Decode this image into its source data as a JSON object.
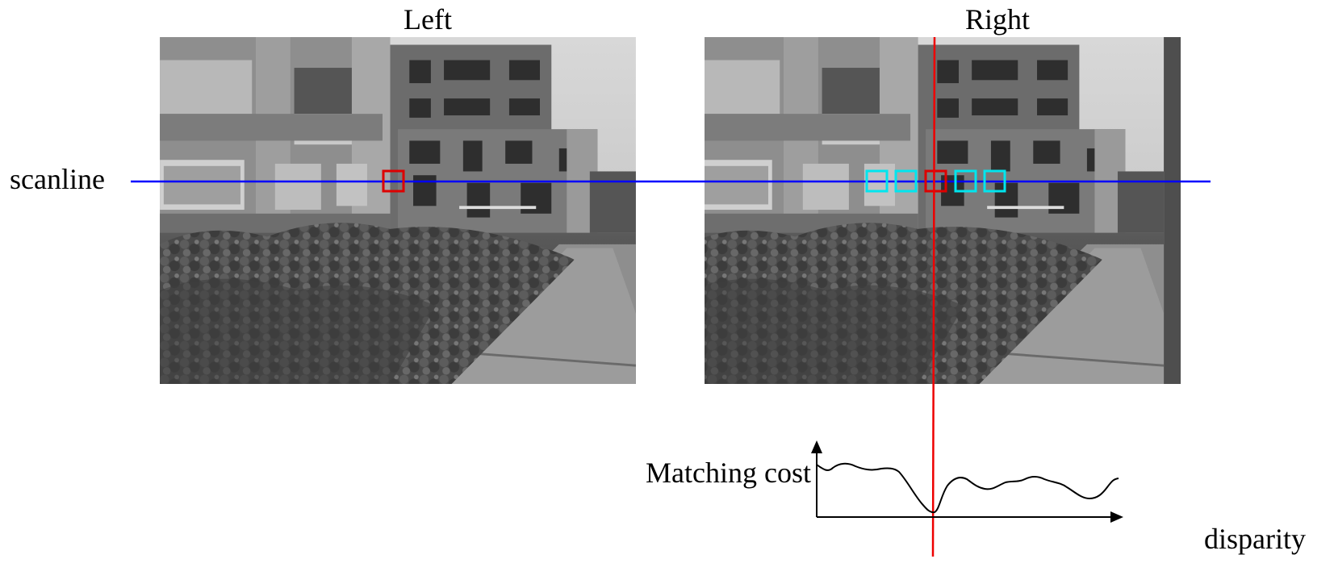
{
  "labels": {
    "left_title": "Left",
    "right_title": "Right",
    "scanline": "scanline",
    "cost_axis": "Matching cost",
    "disparity_axis": "disparity"
  },
  "colors": {
    "scanline": "#0000ff",
    "reference_window": "#dd0000",
    "candidate_windows": "#00e5ee",
    "vertical_marker": "#ee0000",
    "cost_curve": "#000000"
  },
  "images": {
    "left": "grayscale stereo photo (left view): building facade, trees, shrubs and a paved walkway",
    "right": "grayscale stereo photo (right view): same scene shifted horizontally"
  },
  "candidate_window_count": 5
}
